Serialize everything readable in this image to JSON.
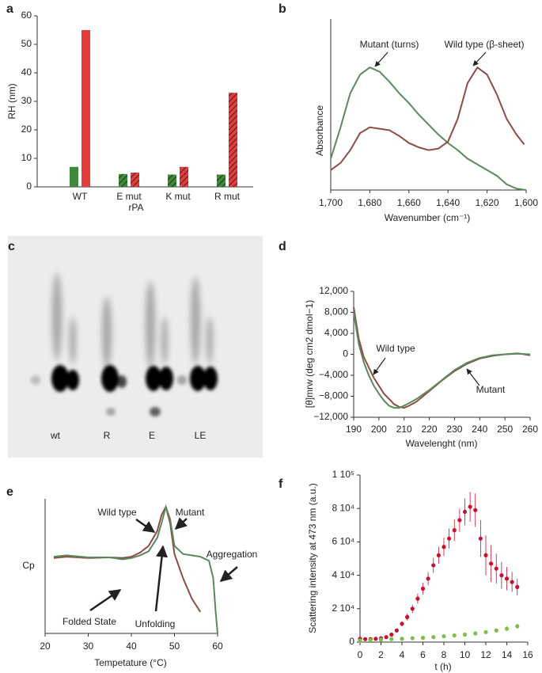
{
  "chart_data": [
    {
      "panel": "a",
      "type": "bar",
      "ylabel": "RH (nm)",
      "xlabel": "rPA",
      "categories": [
        "WT",
        "E mut",
        "K mut",
        "R mut"
      ],
      "series": [
        {
          "color": "#3f8a3a",
          "values": [
            7,
            4.5,
            4.3,
            4.3
          ],
          "hatch": [
            false,
            true,
            true,
            true
          ]
        },
        {
          "color": "#e23c3c",
          "values": [
            55,
            5,
            7,
            33
          ],
          "hatch": [
            false,
            true,
            true,
            true
          ]
        }
      ],
      "ylim": [
        0,
        60
      ],
      "yticks": [
        0,
        10,
        20,
        30,
        40,
        50,
        60
      ]
    },
    {
      "panel": "b",
      "type": "line",
      "ylabel": "Absorbance",
      "xlabel": "Wavenumber (cm⁻¹)",
      "annotations": [
        "Mutant (turns)",
        "Wild type (β-sheet)"
      ],
      "series": [
        {
          "color": "#5a8a5c",
          "x": [
            1700,
            1695,
            1690,
            1685,
            1680,
            1675,
            1670,
            1665,
            1660,
            1655,
            1650,
            1645,
            1640,
            1635,
            1630,
            1625,
            1620,
            1615,
            1610,
            1605,
            1600
          ],
          "values": [
            0.22,
            0.44,
            0.68,
            0.81,
            0.86,
            0.83,
            0.76,
            0.68,
            0.61,
            0.53,
            0.46,
            0.39,
            0.33,
            0.28,
            0.22,
            0.18,
            0.14,
            0.1,
            0.04,
            0.01,
            0
          ]
        },
        {
          "color": "#8e4c44",
          "x": [
            1700,
            1695,
            1690,
            1685,
            1680,
            1675,
            1670,
            1665,
            1660,
            1655,
            1650,
            1645,
            1640,
            1635,
            1630,
            1625,
            1620,
            1615,
            1610,
            1605,
            1601
          ],
          "values": [
            0.14,
            0.19,
            0.28,
            0.4,
            0.44,
            0.43,
            0.42,
            0.38,
            0.33,
            0.3,
            0.28,
            0.29,
            0.34,
            0.5,
            0.75,
            0.86,
            0.81,
            0.67,
            0.5,
            0.39,
            0.32
          ]
        }
      ],
      "xlim": [
        1700,
        1600
      ],
      "ylim": [
        0,
        1.2
      ],
      "xticks": [
        {
          "value": 1700,
          "label": "1,700"
        },
        {
          "value": 1680,
          "label": "1,680"
        },
        {
          "value": 1660,
          "label": "1,660"
        },
        {
          "value": 1640,
          "label": "1,640"
        },
        {
          "value": 1620,
          "label": "1,620"
        },
        {
          "value": 1600,
          "label": "1,600"
        }
      ]
    },
    {
      "panel": "d",
      "type": "line",
      "ylabel": "[θ]mrw (deg cm2 dmol−1)",
      "xlabel": "Wavelenght (nm)",
      "annotations": [
        "Wild type",
        "Mutant"
      ],
      "series": [
        {
          "color": "#8e4c44",
          "x": [
            190,
            192,
            194,
            196,
            198,
            200,
            202,
            204,
            206,
            208,
            210,
            212,
            215,
            220,
            225,
            230,
            235,
            240,
            245,
            250,
            255,
            260
          ],
          "values": [
            9000,
            3000,
            -500,
            -2500,
            -4500,
            -6000,
            -7500,
            -8500,
            -9500,
            -10000,
            -10200,
            -9800,
            -9000,
            -7000,
            -5000,
            -3200,
            -1800,
            -800,
            -300,
            0,
            200,
            -200
          ]
        },
        {
          "color": "#5a8a5c",
          "x": [
            190,
            192,
            194,
            196,
            198,
            200,
            202,
            204,
            206,
            208,
            210,
            212,
            215,
            220,
            225,
            230,
            235,
            240,
            245,
            250,
            255,
            260
          ],
          "values": [
            8000,
            2000,
            -1500,
            -4000,
            -6000,
            -7500,
            -8800,
            -9800,
            -10200,
            -10200,
            -9800,
            -9300,
            -8500,
            -6800,
            -4900,
            -3000,
            -1600,
            -700,
            -200,
            0,
            100,
            0
          ]
        }
      ],
      "xlim": [
        190,
        260
      ],
      "ylim": [
        -12000,
        12000
      ],
      "xticks": [
        190,
        200,
        210,
        220,
        230,
        240,
        250,
        260
      ],
      "yticks": [
        {
          "value": 12000,
          "label": "12,000"
        },
        {
          "value": 8000,
          "label": "8,000"
        },
        {
          "value": 4000,
          "label": "4,000"
        },
        0,
        {
          "value": -4000,
          "label": "−4,000"
        },
        {
          "value": -8000,
          "label": "−8,000"
        },
        {
          "value": -12000,
          "label": "−12,000"
        }
      ]
    },
    {
      "panel": "e",
      "type": "line",
      "ylabel": "Cp",
      "xlabel": "Tempetature (°C)",
      "annotations": [
        "Wild type",
        "Mutant",
        "Aggregation",
        "Folded State",
        "Unfolding"
      ],
      "series": [
        {
          "color": "#8e4c44",
          "x": [
            22,
            25,
            30,
            35,
            38,
            40,
            42,
            44,
            46,
            47,
            48,
            49,
            50,
            52,
            54,
            56
          ],
          "values": [
            0.56,
            0.57,
            0.56,
            0.565,
            0.56,
            0.57,
            0.6,
            0.65,
            0.76,
            0.88,
            0.94,
            0.82,
            0.59,
            0.41,
            0.26,
            0.16
          ]
        },
        {
          "color": "#5a8a5c",
          "x": [
            22,
            25,
            30,
            35,
            38,
            40,
            42,
            44,
            46,
            47,
            48,
            49,
            50,
            52,
            54,
            56,
            58,
            59,
            59.5,
            60
          ],
          "values": [
            0.57,
            0.58,
            0.565,
            0.565,
            0.55,
            0.56,
            0.58,
            0.61,
            0.71,
            0.82,
            0.94,
            0.85,
            0.65,
            0.59,
            0.58,
            0.57,
            0.54,
            0.41,
            0.18,
            0
          ]
        }
      ],
      "xlim": [
        20,
        60
      ],
      "ylim": [
        0,
        1
      ],
      "xticks": [
        20,
        30,
        40,
        50,
        60
      ]
    },
    {
      "panel": "f",
      "type": "scatter",
      "ylabel": "Scattering intensity at 473 nm (a.u.)",
      "xlabel": "t (h)",
      "series": [
        {
          "color": "#c8102e",
          "x": [
            0,
            0.5,
            1,
            1.5,
            2,
            2.5,
            3,
            3.5,
            4,
            4.5,
            5,
            5.5,
            6,
            6.5,
            7,
            7.5,
            8,
            8.5,
            9,
            9.5,
            10,
            10.5,
            11,
            11.5,
            12,
            12.5,
            13,
            13.5,
            14,
            14.5,
            15
          ],
          "values": [
            2000,
            1800,
            1800,
            2000,
            2300,
            3000,
            4500,
            7000,
            11000,
            15000,
            20000,
            26000,
            32000,
            38000,
            46000,
            52000,
            57000,
            62000,
            67000,
            73000,
            78000,
            81000,
            79000,
            62000,
            52000,
            47000,
            44000,
            40000,
            38000,
            36000,
            33000
          ],
          "errors": [
            500,
            500,
            500,
            500,
            600,
            700,
            1000,
            1200,
            1500,
            2000,
            2500,
            3000,
            3500,
            4000,
            4500,
            5000,
            5500,
            6000,
            6500,
            7000,
            8000,
            9000,
            10000,
            11000,
            12000,
            11000,
            9000,
            8000,
            7000,
            6000,
            5000
          ]
        },
        {
          "color": "#7cc04a",
          "x": [
            0,
            1,
            2,
            3,
            4,
            5,
            6,
            7,
            8,
            9,
            10,
            11,
            12,
            13,
            14,
            15
          ],
          "values": [
            1000,
            1200,
            1500,
            1800,
            2000,
            2300,
            2600,
            3000,
            3500,
            4000,
            4500,
            5200,
            6000,
            7000,
            8000,
            9500
          ],
          "errors": [
            500,
            500,
            500,
            500,
            500,
            500,
            500,
            500,
            600,
            600,
            700,
            800,
            900,
            1000,
            1500,
            1500
          ]
        }
      ],
      "xlim": [
        0,
        16
      ],
      "ylim": [
        0,
        100000
      ],
      "xticks": [
        0,
        2,
        4,
        6,
        8,
        10,
        12,
        14,
        16
      ],
      "yticks": [
        0,
        {
          "value": 20000,
          "label": "2 10⁴"
        },
        {
          "value": 40000,
          "label": "4 10⁴"
        },
        {
          "value": 60000,
          "label": "6 10⁴"
        },
        {
          "value": 80000,
          "label": "8 10⁴"
        },
        {
          "value": 100000,
          "label": "1 10⁵"
        }
      ]
    }
  ],
  "gel": {
    "panel": "c",
    "lanes": [
      "wt",
      "R",
      "E",
      "LE"
    ]
  }
}
